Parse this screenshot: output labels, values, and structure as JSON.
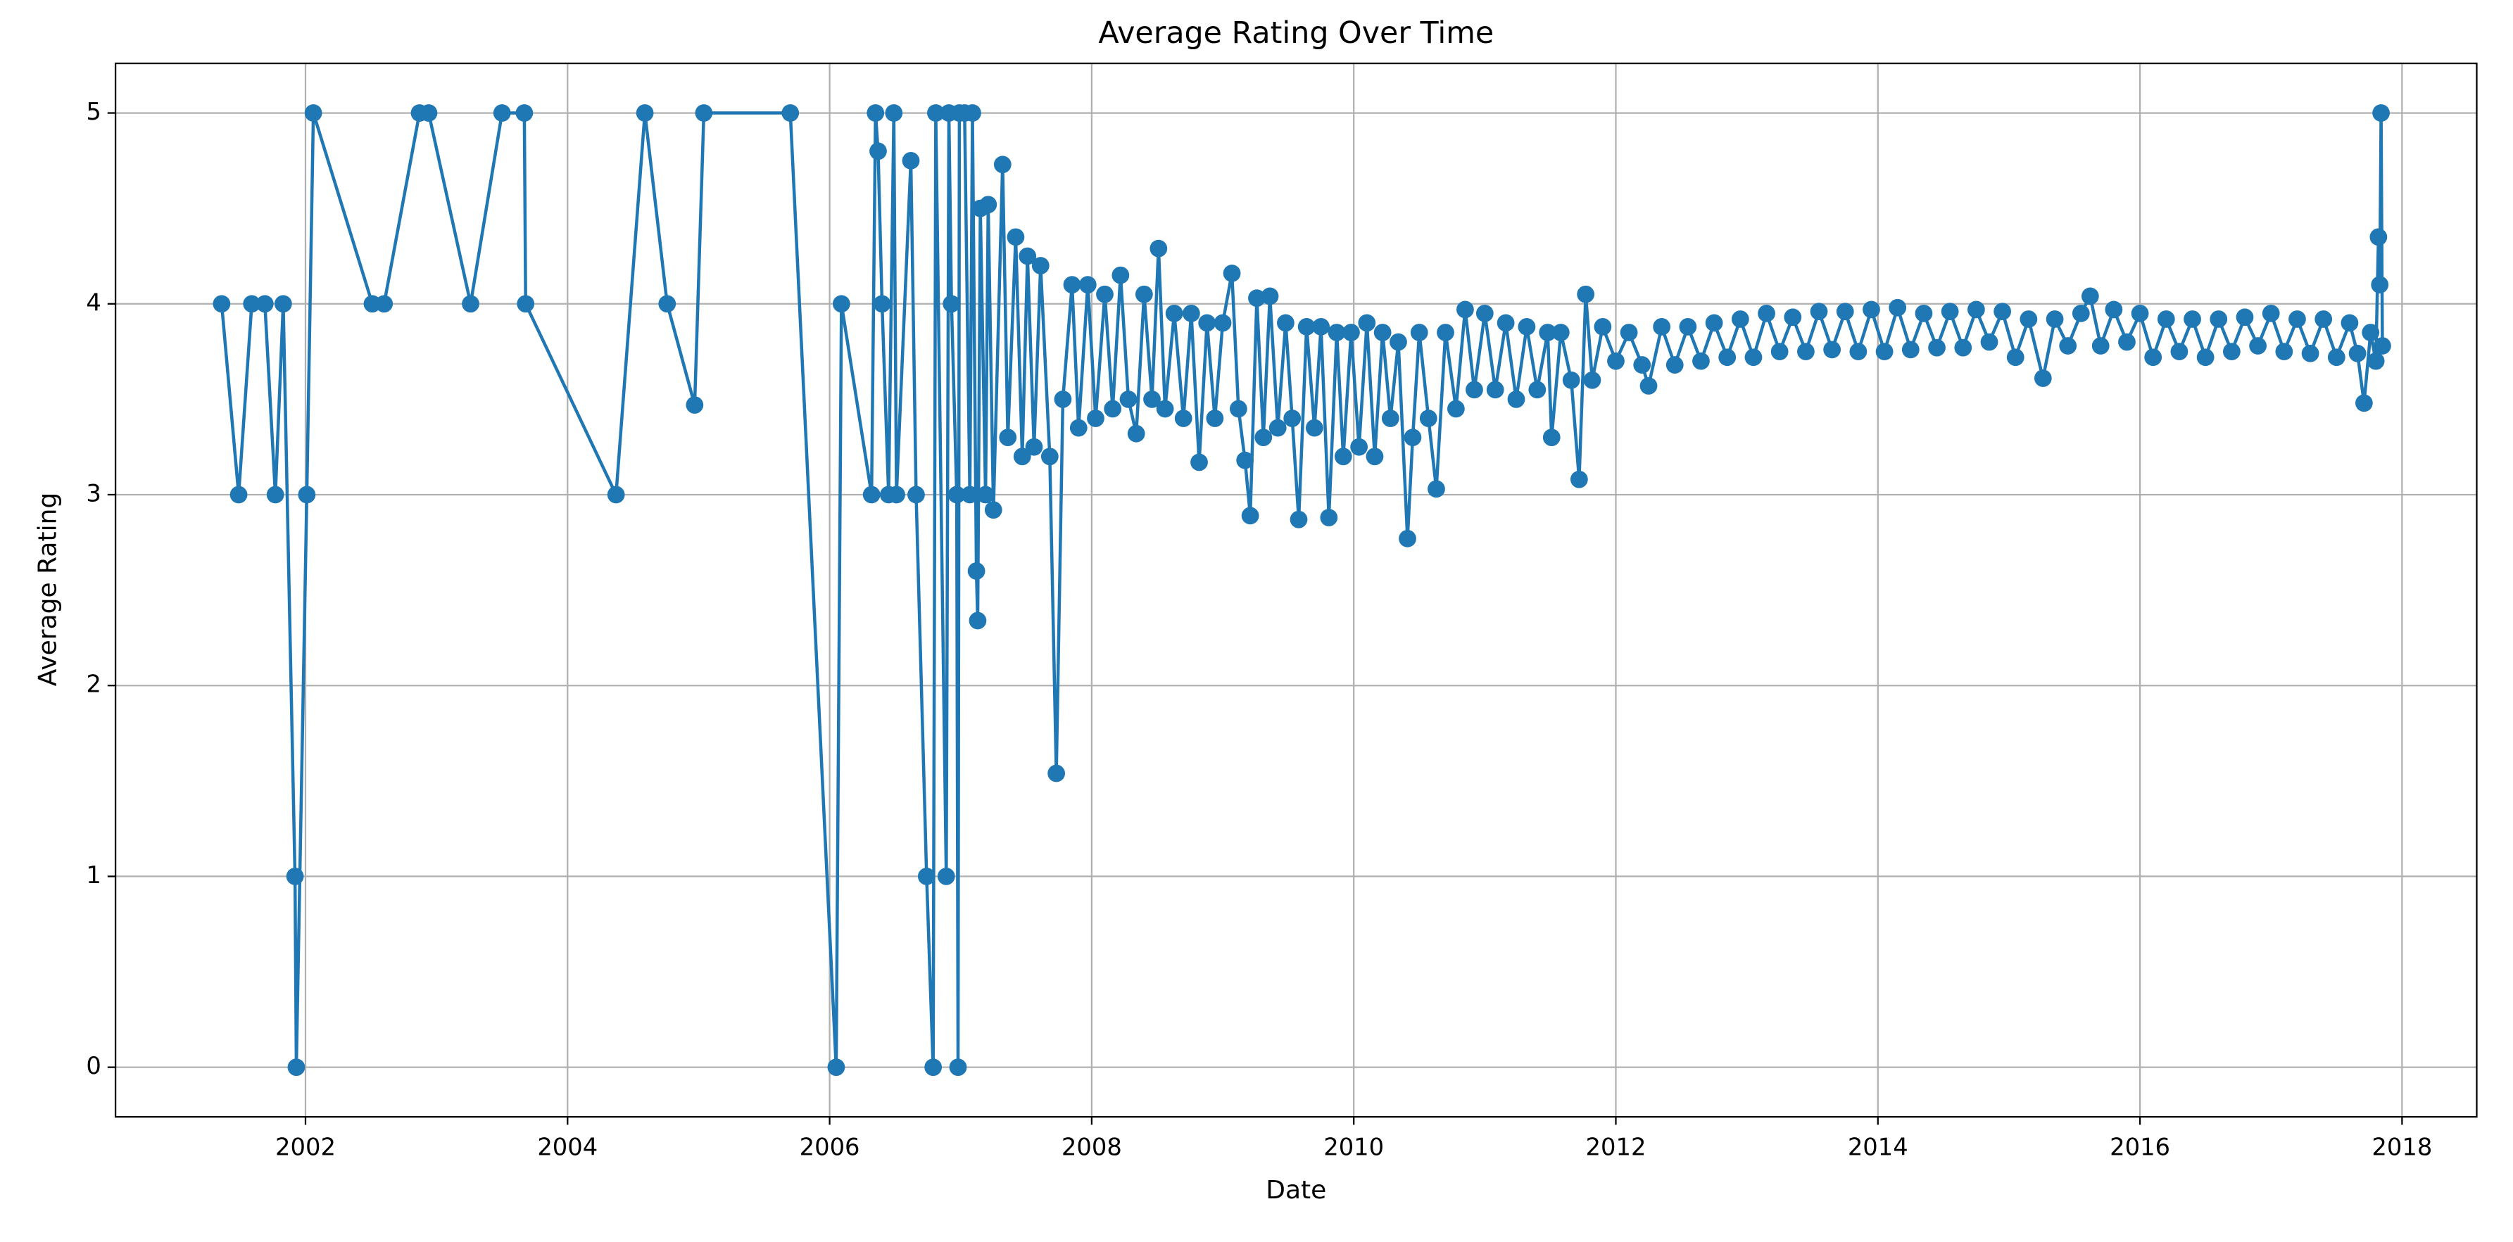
{
  "chart_data": {
    "type": "line",
    "title": "Average Rating Over Time",
    "x_label": "Date",
    "y_label": "Average Rating",
    "color": "#1f77b4",
    "grid": true,
    "xlim": [
      2000.55,
      2018.57
    ],
    "ylim": [
      -0.26,
      5.26
    ],
    "xticks": [
      2002,
      2004,
      2006,
      2008,
      2010,
      2012,
      2014,
      2016,
      2018
    ],
    "yticks": [
      0,
      1,
      2,
      3,
      4,
      5
    ],
    "x": [
      2001.36,
      2001.49,
      2001.59,
      2001.69,
      2001.77,
      2001.83,
      2001.92,
      2001.93,
      2002.01,
      2002.06,
      2002.51,
      2002.6,
      2002.87,
      2002.94,
      2003.26,
      2003.5,
      2003.67,
      2003.68,
      2004.37,
      2004.59,
      2004.76,
      2004.97,
      2005.04,
      2005.7,
      2006.05,
      2006.09,
      2006.32,
      2006.35,
      2006.37,
      2006.4,
      2006.45,
      2006.49,
      2006.51,
      2006.62,
      2006.66,
      2006.74,
      2006.79,
      2006.81,
      2006.89,
      2006.91,
      2006.93,
      2006.97,
      2006.98,
      2006.99,
      2007.03,
      2007.07,
      2007.09,
      2007.12,
      2007.13,
      2007.15,
      2007.19,
      2007.21,
      2007.25,
      2007.32,
      2007.36,
      2007.42,
      2007.47,
      2007.51,
      2007.56,
      2007.61,
      2007.68,
      2007.73,
      2007.78,
      2007.85,
      2007.9,
      2007.97,
      2008.03,
      2008.1,
      2008.16,
      2008.22,
      2008.28,
      2008.34,
      2008.4,
      2008.46,
      2008.51,
      2008.56,
      2008.63,
      2008.7,
      2008.76,
      2008.82,
      2008.88,
      2008.94,
      2009.0,
      2009.07,
      2009.12,
      2009.17,
      2009.21,
      2009.26,
      2009.31,
      2009.36,
      2009.42,
      2009.48,
      2009.53,
      2009.58,
      2009.64,
      2009.7,
      2009.75,
      2009.81,
      2009.87,
      2009.92,
      2009.98,
      2010.04,
      2010.1,
      2010.16,
      2010.22,
      2010.28,
      2010.34,
      2010.41,
      2010.45,
      2010.5,
      2010.57,
      2010.63,
      2010.7,
      2010.78,
      2010.85,
      2010.92,
      2011.0,
      2011.08,
      2011.16,
      2011.24,
      2011.32,
      2011.4,
      2011.48,
      2011.51,
      2011.58,
      2011.66,
      2011.72,
      2011.77,
      2011.82,
      2011.9,
      2012.0,
      2012.1,
      2012.2,
      2012.25,
      2012.35,
      2012.45,
      2012.55,
      2012.65,
      2012.75,
      2012.85,
      2012.95,
      2013.05,
      2013.15,
      2013.25,
      2013.35,
      2013.45,
      2013.55,
      2013.65,
      2013.75,
      2013.85,
      2013.95,
      2014.05,
      2014.15,
      2014.25,
      2014.35,
      2014.45,
      2014.55,
      2014.65,
      2014.75,
      2014.85,
      2014.95,
      2015.05,
      2015.15,
      2015.26,
      2015.35,
      2015.45,
      2015.55,
      2015.62,
      2015.7,
      2015.8,
      2015.9,
      2016.0,
      2016.1,
      2016.2,
      2016.3,
      2016.4,
      2016.5,
      2016.6,
      2016.7,
      2016.8,
      2016.9,
      2017.0,
      2017.1,
      2017.2,
      2017.3,
      2017.4,
      2017.5,
      2017.6,
      2017.66,
      2017.71,
      2017.76,
      2017.8,
      2017.82,
      2017.83,
      2017.84,
      2017.85
    ],
    "values": [
      4,
      3,
      4,
      4,
      3,
      4,
      1,
      0,
      3,
      5,
      4,
      4,
      5,
      5,
      4,
      5,
      5,
      4,
      3,
      5,
      4,
      3.47,
      5,
      5,
      0,
      4,
      3,
      5,
      4.8,
      4,
      3,
      5,
      3,
      4.75,
      3,
      1,
      0,
      5,
      1,
      5,
      4,
      3,
      0,
      5,
      5,
      3,
      5,
      2.6,
      2.34,
      4.5,
      3.0,
      4.52,
      2.92,
      4.73,
      3.3,
      4.35,
      3.2,
      4.25,
      3.25,
      4.2,
      3.2,
      1.54,
      3.5,
      4.1,
      3.35,
      4.1,
      3.4,
      4.05,
      3.45,
      4.15,
      3.5,
      3.32,
      4.05,
      3.5,
      4.29,
      3.45,
      3.95,
      3.4,
      3.95,
      3.17,
      3.9,
      3.4,
      3.9,
      4.16,
      3.45,
      3.18,
      2.89,
      4.03,
      3.3,
      4.04,
      3.35,
      3.9,
      3.4,
      2.87,
      3.88,
      3.35,
      3.88,
      2.88,
      3.85,
      3.2,
      3.85,
      3.25,
      3.9,
      3.2,
      3.85,
      3.4,
      3.8,
      2.77,
      3.3,
      3.85,
      3.4,
      3.03,
      3.85,
      3.45,
      3.97,
      3.55,
      3.95,
      3.55,
      3.9,
      3.5,
      3.88,
      3.55,
      3.85,
      3.3,
      3.85,
      3.6,
      3.08,
      4.05,
      3.6,
      3.88,
      3.7,
      3.85,
      3.68,
      3.57,
      3.88,
      3.68,
      3.88,
      3.7,
      3.9,
      3.72,
      3.92,
      3.72,
      3.95,
      3.75,
      3.93,
      3.75,
      3.96,
      3.76,
      3.96,
      3.75,
      3.97,
      3.75,
      3.98,
      3.76,
      3.95,
      3.77,
      3.96,
      3.77,
      3.97,
      3.8,
      3.96,
      3.72,
      3.92,
      3.61,
      3.92,
      3.78,
      3.95,
      4.04,
      3.78,
      3.97,
      3.8,
      3.95,
      3.72,
      3.92,
      3.75,
      3.92,
      3.72,
      3.92,
      3.75,
      3.93,
      3.78,
      3.95,
      3.75,
      3.92,
      3.74,
      3.92,
      3.72,
      3.9,
      3.74,
      3.48,
      3.85,
      3.7,
      4.35,
      4.1,
      5,
      3.78
    ]
  }
}
